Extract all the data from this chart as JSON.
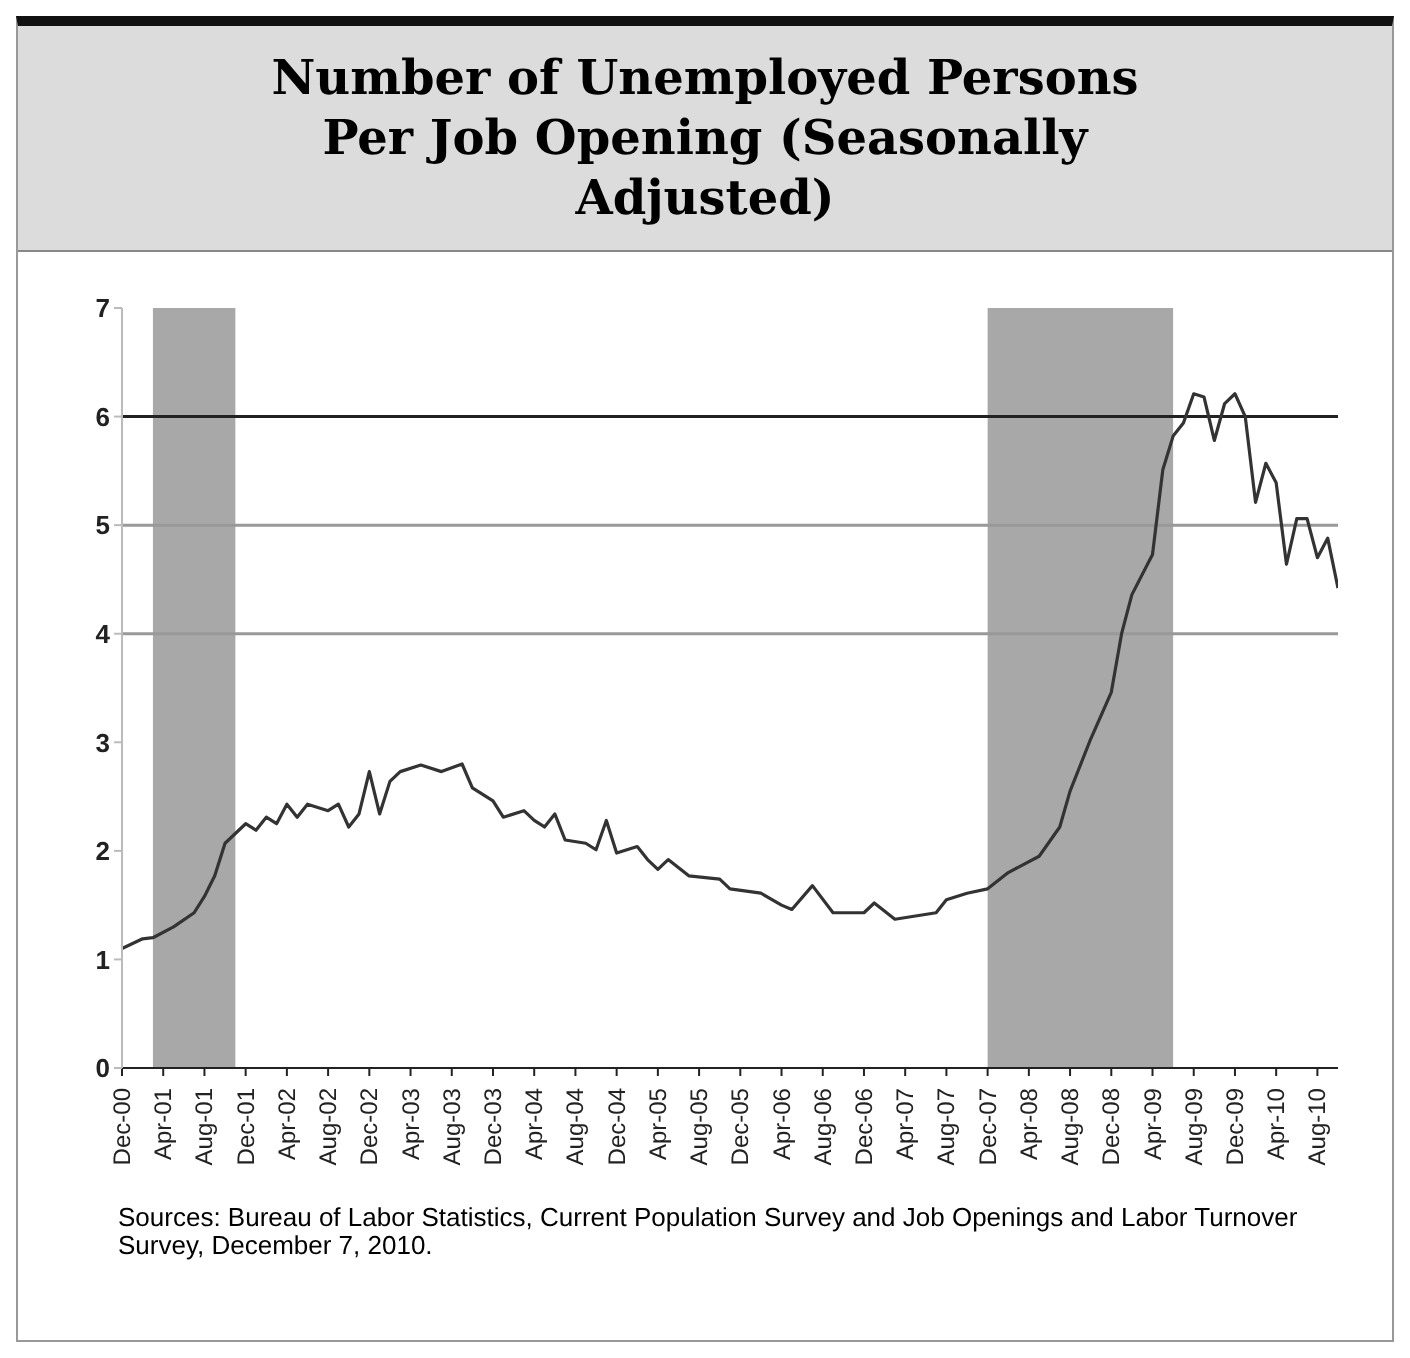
{
  "chart_data": {
    "type": "line",
    "title": "Number of Unemployed Persons Per Job Opening (Seasonally Adjusted)",
    "annotations": [
      "Sources: Bureau of Labor Statistics, Current Population Survey and Job Openings and Labor Turnover Survey, December 7, 2010."
    ],
    "x": [
      "2000-12",
      "2001-02",
      "2001-03",
      "2001-05",
      "2001-07",
      "2001-08",
      "2001-09",
      "2001-10",
      "2001-12",
      "2002-01",
      "2002-02",
      "2002-03",
      "2002-04",
      "2002-05",
      "2002-06",
      "2002-08",
      "2002-09",
      "2002-10",
      "2002-11",
      "2002-12",
      "2003-01",
      "2003-02",
      "2003-03",
      "2003-05",
      "2003-07",
      "2003-09",
      "2003-10",
      "2003-12",
      "2004-01",
      "2004-03",
      "2004-04",
      "2004-05",
      "2004-06",
      "2004-07",
      "2004-09",
      "2004-10",
      "2004-11",
      "2004-12",
      "2005-02",
      "2005-03",
      "2005-04",
      "2005-05",
      "2005-07",
      "2005-10",
      "2005-11",
      "2006-02",
      "2006-04",
      "2006-05",
      "2006-07",
      "2006-09",
      "2006-12",
      "2007-01",
      "2007-03",
      "2007-07",
      "2007-08",
      "2007-10",
      "2007-12",
      "2008-02",
      "2008-05",
      "2008-07",
      "2008-08",
      "2008-10",
      "2008-12",
      "2009-01",
      "2009-02",
      "2009-04",
      "2009-05",
      "2009-06",
      "2009-07",
      "2009-08",
      "2009-09",
      "2009-10",
      "2009-11",
      "2009-12",
      "2010-01",
      "2010-02",
      "2010-03",
      "2010-04",
      "2010-05",
      "2010-06",
      "2010-07",
      "2010-08",
      "2010-09",
      "2010-10"
    ],
    "series": [
      {
        "color": "#333333",
        "values": [
          1.1,
          1.19,
          1.2,
          1.3,
          1.43,
          1.58,
          1.77,
          2.07,
          2.25,
          2.19,
          2.31,
          2.25,
          2.43,
          2.31,
          2.43,
          2.37,
          2.43,
          2.22,
          2.34,
          2.73,
          2.34,
          2.64,
          2.73,
          2.79,
          2.73,
          2.8,
          2.58,
          2.46,
          2.31,
          2.37,
          2.28,
          2.22,
          2.34,
          2.1,
          2.07,
          2.01,
          2.28,
          1.98,
          2.04,
          1.92,
          1.83,
          1.92,
          1.77,
          1.74,
          1.65,
          1.61,
          1.5,
          1.46,
          1.68,
          1.43,
          1.43,
          1.52,
          1.37,
          1.43,
          1.55,
          1.61,
          1.65,
          1.8,
          1.95,
          2.22,
          2.55,
          3.03,
          3.46,
          4.0,
          4.36,
          4.73,
          5.51,
          5.82,
          5.94,
          6.21,
          6.18,
          5.78,
          6.12,
          6.21,
          6.0,
          5.21,
          5.57,
          5.39,
          4.64,
          5.06,
          5.06,
          4.7,
          4.88,
          4.42
        ]
      }
    ],
    "xlim": [
      "2000-12",
      "2010-10"
    ],
    "xticks": [
      {
        "value": "2000-12",
        "label": "Dec-00"
      },
      {
        "value": "2001-04",
        "label": "Apr-01"
      },
      {
        "value": "2001-08",
        "label": "Aug-01"
      },
      {
        "value": "2001-12",
        "label": "Dec-01"
      },
      {
        "value": "2002-04",
        "label": "Apr-02"
      },
      {
        "value": "2002-08",
        "label": "Aug-02"
      },
      {
        "value": "2002-12",
        "label": "Dec-02"
      },
      {
        "value": "2003-04",
        "label": "Apr-03"
      },
      {
        "value": "2003-08",
        "label": "Aug-03"
      },
      {
        "value": "2003-12",
        "label": "Dec-03"
      },
      {
        "value": "2004-04",
        "label": "Apr-04"
      },
      {
        "value": "2004-08",
        "label": "Aug-04"
      },
      {
        "value": "2004-12",
        "label": "Dec-04"
      },
      {
        "value": "2005-04",
        "label": "Apr-05"
      },
      {
        "value": "2005-08",
        "label": "Aug-05"
      },
      {
        "value": "2005-12",
        "label": "Dec-05"
      },
      {
        "value": "2006-04",
        "label": "Apr-06"
      },
      {
        "value": "2006-08",
        "label": "Aug-06"
      },
      {
        "value": "2006-12",
        "label": "Dec-06"
      },
      {
        "value": "2007-04",
        "label": "Apr-07"
      },
      {
        "value": "2007-08",
        "label": "Aug-07"
      },
      {
        "value": "2007-12",
        "label": "Dec-07"
      },
      {
        "value": "2008-04",
        "label": "Apr-08"
      },
      {
        "value": "2008-08",
        "label": "Aug-08"
      },
      {
        "value": "2008-12",
        "label": "Dec-08"
      },
      {
        "value": "2009-04",
        "label": "Apr-09"
      },
      {
        "value": "2009-08",
        "label": "Aug-09"
      },
      {
        "value": "2009-12",
        "label": "Dec-09"
      },
      {
        "value": "2010-04",
        "label": "Apr-10"
      },
      {
        "value": "2010-08",
        "label": "Aug-10"
      }
    ],
    "ylim": [
      0,
      7
    ],
    "yticks": [
      0,
      1,
      2,
      3,
      4,
      5,
      6,
      7
    ],
    "ref_lines": [
      {
        "axis": "y",
        "value": 4,
        "color": "#999999"
      },
      {
        "axis": "y",
        "value": 5,
        "color": "#999999"
      },
      {
        "axis": "y",
        "value": 6,
        "color": "#222222"
      }
    ],
    "bands": [
      {
        "axis": "x",
        "from": "2001-03",
        "to": "2001-11",
        "color": "#a8a8a8"
      },
      {
        "axis": "x",
        "from": "2007-12",
        "to": "2009-06",
        "color": "#a8a8a8"
      }
    ],
    "grid": false,
    "legend": false
  }
}
